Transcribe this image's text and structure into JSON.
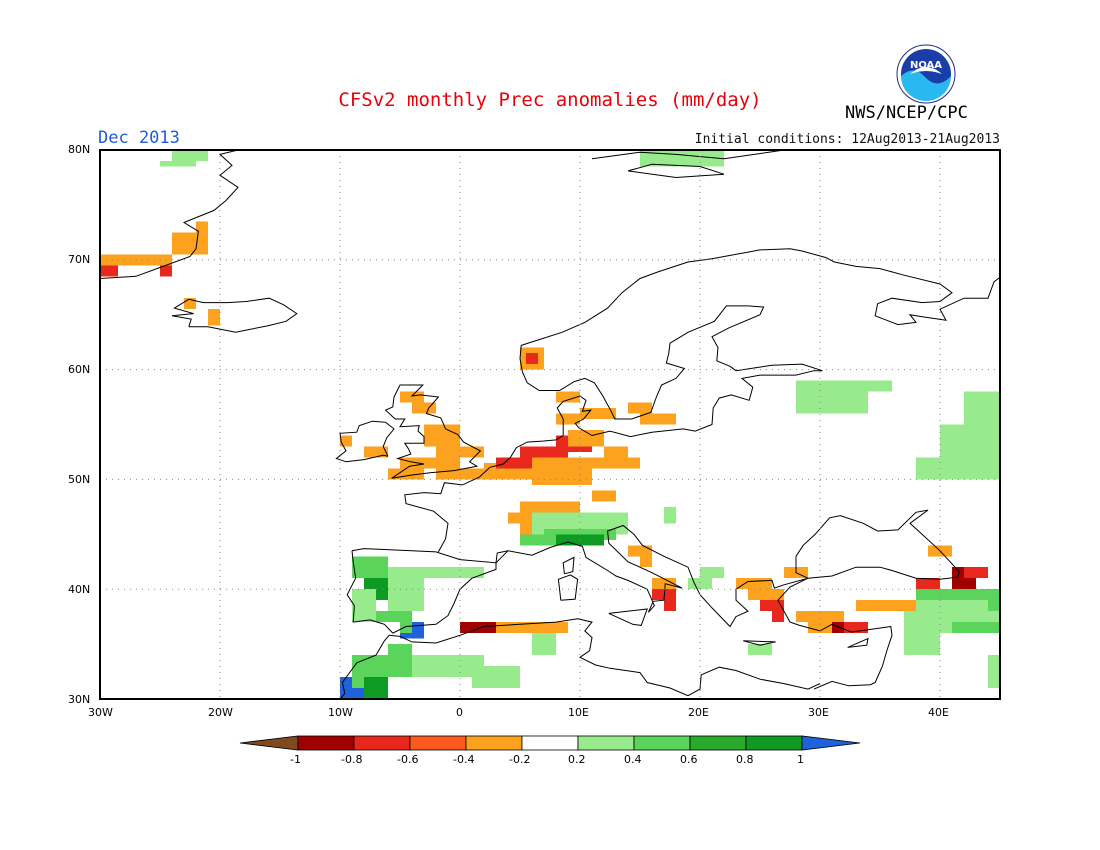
{
  "title": "CFSv2 monthly Prec anomalies (mm/day)",
  "month_label": "Dec 2013",
  "initial_conditions": "Initial conditions: 12Aug2013-21Aug2013",
  "agency": "NWS/NCEP/CPC",
  "logo_text": "NOAA",
  "map": {
    "lon_range": [
      -30,
      45
    ],
    "lat_range": [
      30,
      80
    ],
    "lat_labels": [
      "80N",
      "70N",
      "60N",
      "50N",
      "40N",
      "30N"
    ],
    "lon_labels": [
      "30W",
      "20W",
      "10W",
      "0",
      "10E",
      "20E",
      "30E",
      "40E"
    ],
    "grid": "dotted"
  },
  "colorbar": {
    "tick_labels": [
      "-1",
      "-0.8",
      "-0.6",
      "-0.4",
      "-0.2",
      "0.2",
      "0.4",
      "0.6",
      "0.8",
      "1"
    ],
    "colors": [
      "#7f4a1e",
      "#a00000",
      "#e8281c",
      "#fd5a1e",
      "#fca21e",
      "#ffffff",
      "#98eb8c",
      "#5ad45a",
      "#2aaa2a",
      "#0f9a23",
      "#1e62dc"
    ]
  }
}
